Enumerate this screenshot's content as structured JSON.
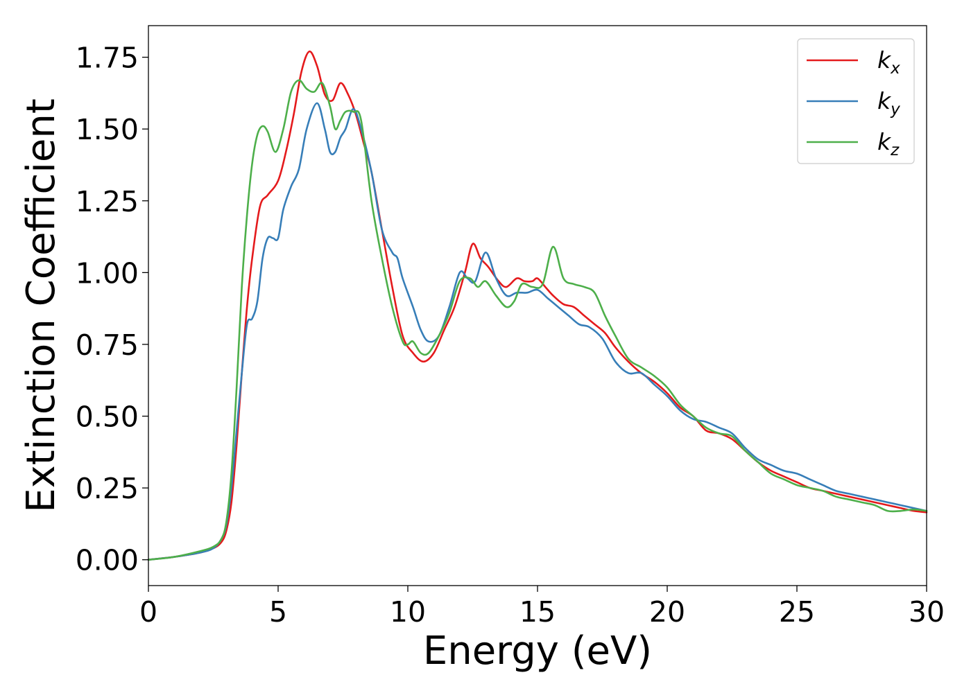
{
  "chart_data": {
    "type": "line",
    "xlabel": "Energy (eV)",
    "ylabel": "Extinction Coefficient",
    "xlim": [
      0,
      30
    ],
    "ylim": [
      -0.09,
      1.86
    ],
    "xticks": [
      0,
      5,
      10,
      15,
      20,
      25,
      30
    ],
    "xtick_labels": [
      "0",
      "5",
      "10",
      "15",
      "20",
      "25",
      "30"
    ],
    "yticks": [
      0,
      0.25,
      0.5,
      0.75,
      1.0,
      1.25,
      1.5,
      1.75
    ],
    "ytick_labels": [
      "0.00",
      "0.25",
      "0.50",
      "0.75",
      "1.00",
      "1.25",
      "1.50",
      "1.75"
    ],
    "grid": false,
    "legend_position": "top-right",
    "series": [
      {
        "name": "k",
        "name_sub": "x",
        "color": "#e41a1c",
        "x": [
          0,
          1,
          2,
          2.5,
          2.8,
          3.0,
          3.2,
          3.4,
          3.6,
          3.8,
          4.0,
          4.3,
          4.6,
          5.0,
          5.3,
          5.6,
          5.9,
          6.2,
          6.5,
          6.8,
          7.1,
          7.4,
          7.7,
          8.0,
          8.3,
          8.6,
          9.0,
          9.4,
          9.8,
          10.2,
          10.6,
          11.0,
          11.4,
          11.8,
          12.2,
          12.5,
          12.8,
          13.1,
          13.5,
          13.8,
          14.2,
          14.5,
          14.8,
          15.0,
          15.3,
          15.6,
          16.0,
          16.4,
          16.8,
          17.2,
          17.6,
          18.0,
          18.5,
          19.0,
          19.5,
          20.0,
          20.5,
          21.0,
          21.5,
          22.0,
          22.5,
          23.0,
          23.5,
          24.0,
          24.5,
          25.0,
          25.5,
          26.0,
          26.5,
          27.0,
          27.5,
          28.0,
          28.5,
          29.0,
          29.5,
          30.0
        ],
        "y": [
          0,
          0.01,
          0.025,
          0.04,
          0.06,
          0.1,
          0.2,
          0.4,
          0.65,
          0.88,
          1.05,
          1.23,
          1.27,
          1.32,
          1.42,
          1.55,
          1.7,
          1.77,
          1.72,
          1.62,
          1.6,
          1.66,
          1.62,
          1.55,
          1.45,
          1.35,
          1.15,
          0.95,
          0.78,
          0.72,
          0.69,
          0.72,
          0.8,
          0.88,
          1.0,
          1.1,
          1.05,
          1.02,
          0.97,
          0.95,
          0.98,
          0.97,
          0.97,
          0.98,
          0.95,
          0.92,
          0.89,
          0.88,
          0.85,
          0.82,
          0.79,
          0.74,
          0.69,
          0.65,
          0.62,
          0.58,
          0.53,
          0.5,
          0.45,
          0.44,
          0.42,
          0.38,
          0.34,
          0.31,
          0.29,
          0.27,
          0.25,
          0.24,
          0.23,
          0.22,
          0.21,
          0.2,
          0.19,
          0.18,
          0.17,
          0.165
        ]
      },
      {
        "name": "k",
        "name_sub": "y",
        "color": "#377eb8",
        "x": [
          0,
          1,
          2,
          2.5,
          2.8,
          3.0,
          3.2,
          3.4,
          3.6,
          3.8,
          4.0,
          4.2,
          4.4,
          4.6,
          4.8,
          5.0,
          5.2,
          5.5,
          5.8,
          6.1,
          6.5,
          6.8,
          7.0,
          7.2,
          7.4,
          7.6,
          7.9,
          8.2,
          8.6,
          9.0,
          9.4,
          9.6,
          9.8,
          10.2,
          10.5,
          10.8,
          11.2,
          11.6,
          12.0,
          12.3,
          12.6,
          13.0,
          13.4,
          13.8,
          14.2,
          14.6,
          15.0,
          15.4,
          15.8,
          16.2,
          16.6,
          17.0,
          17.5,
          18.0,
          18.5,
          19.0,
          19.5,
          20.0,
          20.5,
          21.0,
          21.5,
          22.0,
          22.5,
          23.0,
          23.5,
          24.0,
          24.5,
          25.0,
          25.5,
          26.0,
          26.5,
          27.0,
          27.5,
          28.0,
          28.5,
          29.0,
          29.5,
          30.0
        ],
        "y": [
          0,
          0.01,
          0.025,
          0.04,
          0.07,
          0.12,
          0.25,
          0.45,
          0.65,
          0.82,
          0.84,
          0.9,
          1.05,
          1.12,
          1.12,
          1.12,
          1.22,
          1.3,
          1.36,
          1.5,
          1.59,
          1.5,
          1.42,
          1.42,
          1.47,
          1.5,
          1.57,
          1.5,
          1.35,
          1.15,
          1.07,
          1.05,
          0.98,
          0.88,
          0.8,
          0.76,
          0.78,
          0.88,
          1.0,
          0.98,
          0.97,
          1.07,
          0.98,
          0.92,
          0.93,
          0.93,
          0.94,
          0.91,
          0.88,
          0.85,
          0.82,
          0.81,
          0.77,
          0.69,
          0.65,
          0.65,
          0.61,
          0.57,
          0.52,
          0.49,
          0.48,
          0.46,
          0.44,
          0.39,
          0.35,
          0.33,
          0.31,
          0.3,
          0.28,
          0.26,
          0.24,
          0.23,
          0.22,
          0.21,
          0.2,
          0.19,
          0.18,
          0.17
        ]
      },
      {
        "name": "k",
        "name_sub": "z",
        "color": "#4daf4a",
        "x": [
          0,
          1,
          2,
          2.5,
          2.8,
          3.0,
          3.2,
          3.4,
          3.6,
          3.8,
          4.0,
          4.2,
          4.4,
          4.6,
          4.9,
          5.2,
          5.5,
          5.8,
          6.1,
          6.4,
          6.7,
          7.0,
          7.2,
          7.4,
          7.6,
          7.9,
          8.2,
          8.6,
          9.0,
          9.4,
          9.8,
          10.0,
          10.2,
          10.5,
          10.8,
          11.2,
          11.6,
          12.0,
          12.4,
          12.7,
          13.0,
          13.4,
          13.8,
          14.1,
          14.4,
          14.8,
          15.2,
          15.6,
          16.0,
          16.4,
          16.8,
          17.2,
          17.6,
          18.0,
          18.5,
          19.0,
          19.5,
          20.0,
          20.5,
          21.0,
          21.5,
          22.0,
          22.5,
          23.0,
          23.5,
          24.0,
          24.5,
          25.0,
          25.5,
          26.0,
          26.5,
          27.0,
          27.5,
          28.0,
          28.5,
          29.0,
          29.5,
          30.0
        ],
        "y": [
          0,
          0.01,
          0.03,
          0.045,
          0.07,
          0.13,
          0.3,
          0.6,
          0.95,
          1.2,
          1.38,
          1.48,
          1.51,
          1.49,
          1.42,
          1.5,
          1.63,
          1.67,
          1.64,
          1.63,
          1.66,
          1.58,
          1.5,
          1.53,
          1.56,
          1.56,
          1.53,
          1.25,
          1.05,
          0.88,
          0.76,
          0.75,
          0.76,
          0.72,
          0.72,
          0.78,
          0.86,
          0.97,
          0.98,
          0.95,
          0.97,
          0.92,
          0.88,
          0.9,
          0.96,
          0.95,
          0.96,
          1.09,
          0.98,
          0.96,
          0.95,
          0.93,
          0.85,
          0.78,
          0.7,
          0.67,
          0.64,
          0.6,
          0.54,
          0.5,
          0.46,
          0.44,
          0.43,
          0.38,
          0.34,
          0.3,
          0.28,
          0.26,
          0.25,
          0.24,
          0.22,
          0.21,
          0.2,
          0.19,
          0.17,
          0.17,
          0.175,
          0.17
        ]
      }
    ]
  }
}
